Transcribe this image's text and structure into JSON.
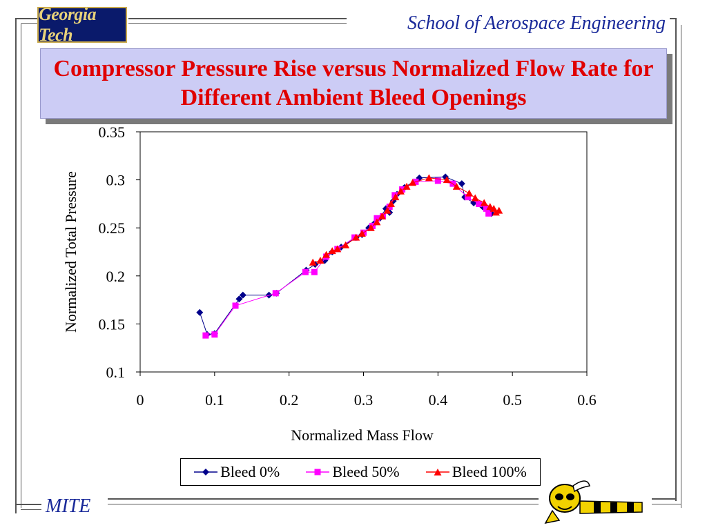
{
  "header": {
    "logo_text": "Georgia Tech",
    "school": "School of Aerospace Engineering",
    "title": "Compressor Pressure Rise versus Normalized Flow Rate for Different Ambient Bleed Openings"
  },
  "footer": {
    "label": "MITE"
  },
  "mascot_icon": "yellow-jacket-mascot-icon",
  "colors": {
    "title": "#e00000",
    "title_bg": "#ccccf5",
    "school": "#1a2a9a"
  },
  "chart_data": {
    "type": "scatter",
    "title": "",
    "xlabel": "Normalized Mass Flow",
    "ylabel": "Normalized Total Pressure",
    "xlim": [
      0,
      0.6
    ],
    "ylim": [
      0.1,
      0.35
    ],
    "x_ticks": [
      "0",
      "0.1",
      "0.2",
      "0.3",
      "0.4",
      "0.5",
      "0.6"
    ],
    "y_ticks": [
      "0.1",
      "0.15",
      "0.2",
      "0.25",
      "0.3",
      "0.35"
    ],
    "x_tick_values": [
      0,
      0.1,
      0.2,
      0.3,
      0.4,
      0.5,
      0.6
    ],
    "y_tick_values": [
      0.1,
      0.15,
      0.2,
      0.25,
      0.3,
      0.35
    ],
    "grid": false,
    "legend_position": "bottom",
    "series": [
      {
        "name": "Bleed 0%",
        "color": "#00008b",
        "marker": "diamond",
        "points": [
          [
            0.08,
            0.162
          ],
          [
            0.09,
            0.139
          ],
          [
            0.1,
            0.14
          ],
          [
            0.133,
            0.176
          ],
          [
            0.138,
            0.18
          ],
          [
            0.173,
            0.18
          ],
          [
            0.183,
            0.182
          ],
          [
            0.223,
            0.206
          ],
          [
            0.235,
            0.212
          ],
          [
            0.248,
            0.216
          ],
          [
            0.258,
            0.225
          ],
          [
            0.27,
            0.23
          ],
          [
            0.29,
            0.24
          ],
          [
            0.298,
            0.243
          ],
          [
            0.307,
            0.25
          ],
          [
            0.315,
            0.255
          ],
          [
            0.322,
            0.26
          ],
          [
            0.33,
            0.27
          ],
          [
            0.335,
            0.266
          ],
          [
            0.34,
            0.278
          ],
          [
            0.345,
            0.285
          ],
          [
            0.355,
            0.292
          ],
          [
            0.375,
            0.302
          ],
          [
            0.41,
            0.303
          ],
          [
            0.432,
            0.296
          ],
          [
            0.436,
            0.282
          ],
          [
            0.448,
            0.276
          ],
          [
            0.46,
            0.272
          ],
          [
            0.468,
            0.268
          ],
          [
            0.472,
            0.265
          ]
        ]
      },
      {
        "name": "Bleed 50%",
        "color": "#ff00ff",
        "marker": "square",
        "points": [
          [
            0.088,
            0.138
          ],
          [
            0.1,
            0.139
          ],
          [
            0.128,
            0.169
          ],
          [
            0.182,
            0.182
          ],
          [
            0.222,
            0.204
          ],
          [
            0.234,
            0.204
          ],
          [
            0.25,
            0.22
          ],
          [
            0.265,
            0.228
          ],
          [
            0.288,
            0.24
          ],
          [
            0.3,
            0.245
          ],
          [
            0.312,
            0.252
          ],
          [
            0.318,
            0.26
          ],
          [
            0.326,
            0.262
          ],
          [
            0.335,
            0.272
          ],
          [
            0.342,
            0.284
          ],
          [
            0.352,
            0.29
          ],
          [
            0.37,
            0.298
          ],
          [
            0.4,
            0.299
          ],
          [
            0.42,
            0.296
          ],
          [
            0.44,
            0.282
          ],
          [
            0.455,
            0.275
          ],
          [
            0.465,
            0.27
          ],
          [
            0.468,
            0.265
          ]
        ]
      },
      {
        "name": "Bleed 100%",
        "color": "#ff0000",
        "marker": "triangle",
        "points": [
          [
            0.232,
            0.214
          ],
          [
            0.242,
            0.216
          ],
          [
            0.25,
            0.222
          ],
          [
            0.258,
            0.226
          ],
          [
            0.265,
            0.228
          ],
          [
            0.276,
            0.232
          ],
          [
            0.29,
            0.24
          ],
          [
            0.298,
            0.244
          ],
          [
            0.31,
            0.25
          ],
          [
            0.318,
            0.256
          ],
          [
            0.325,
            0.262
          ],
          [
            0.332,
            0.268
          ],
          [
            0.337,
            0.275
          ],
          [
            0.343,
            0.282
          ],
          [
            0.35,
            0.288
          ],
          [
            0.358,
            0.293
          ],
          [
            0.366,
            0.297
          ],
          [
            0.388,
            0.302
          ],
          [
            0.412,
            0.3
          ],
          [
            0.425,
            0.293
          ],
          [
            0.442,
            0.286
          ],
          [
            0.45,
            0.281
          ],
          [
            0.462,
            0.276
          ],
          [
            0.47,
            0.272
          ],
          [
            0.475,
            0.27
          ],
          [
            0.478,
            0.266
          ],
          [
            0.482,
            0.268
          ]
        ]
      }
    ]
  }
}
